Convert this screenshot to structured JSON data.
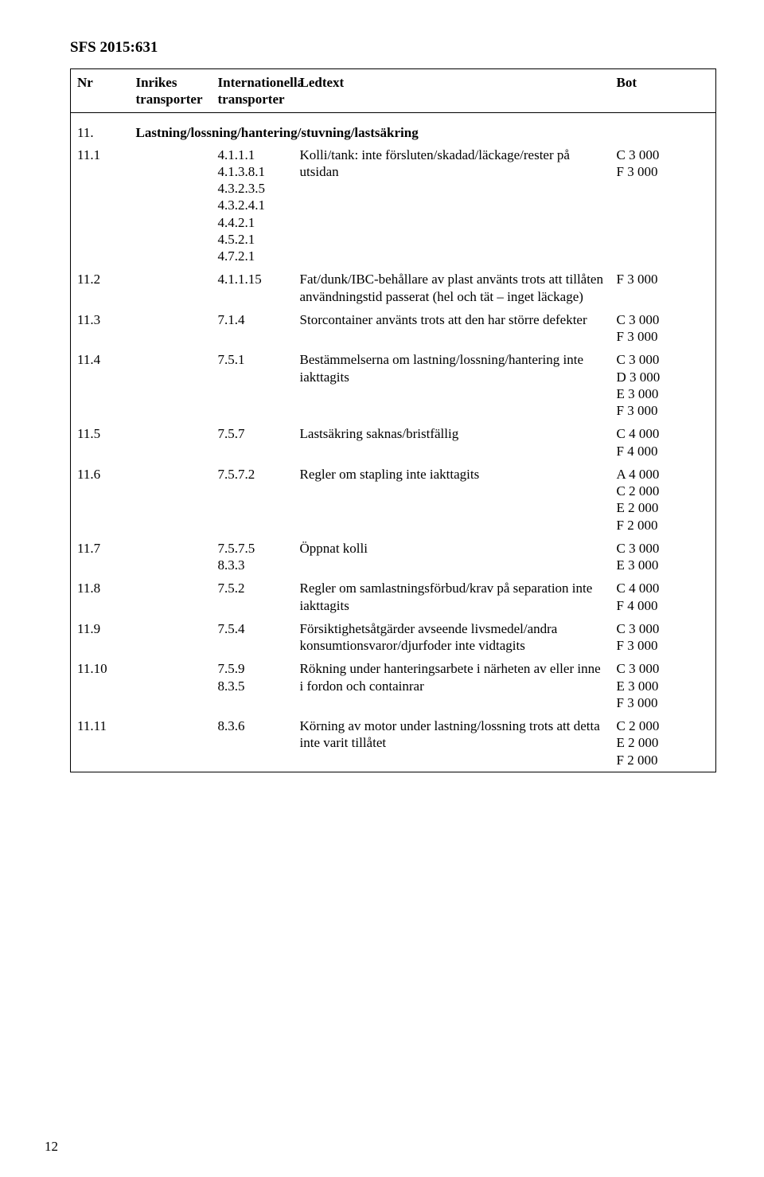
{
  "doc_header": "SFS 2015:631",
  "table": {
    "columns": [
      "Nr",
      "Inrikes transporter",
      "Internationella transporter",
      "Ledtext",
      "Bot"
    ],
    "section": {
      "nr": "11.",
      "label": "Lastning/lossning/hantering/stuvning/lastsäkring"
    },
    "rows": [
      {
        "nr": "11.1",
        "codes": [
          "4.1.1.1",
          "4.1.3.8.1",
          "4.3.2.3.5",
          "4.3.2.4.1",
          "4.4.2.1",
          "4.5.2.1",
          "4.7.2.1"
        ],
        "ledtext": "Kolli/tank: inte försluten/skadad/läckage/rester på utsidan",
        "bot": [
          "C 3 000",
          "F 3 000"
        ]
      },
      {
        "nr": "11.2",
        "codes": [
          "4.1.1.15"
        ],
        "ledtext": "Fat/dunk/IBC-behållare av plast använts trots att tillåten användningstid passerat (hel och tät – inget läckage)",
        "bot": [
          "F 3 000"
        ]
      },
      {
        "nr": "11.3",
        "codes": [
          "7.1.4"
        ],
        "ledtext": "Storcontainer använts trots att den har större defekter",
        "bot": [
          "C 3 000",
          "F 3 000"
        ]
      },
      {
        "nr": "11.4",
        "codes": [
          "7.5.1"
        ],
        "ledtext": "Bestämmelserna om lastning/lossning/hantering inte iakttagits",
        "bot": [
          "C 3 000",
          "D 3 000",
          "E 3 000",
          "F 3 000"
        ]
      },
      {
        "nr": "11.5",
        "codes": [
          "7.5.7"
        ],
        "ledtext": "Lastsäkring saknas/bristfällig",
        "bot": [
          "C 4 000",
          "F 4 000"
        ]
      },
      {
        "nr": "11.6",
        "codes": [
          "7.5.7.2"
        ],
        "ledtext": "Regler om stapling inte iakttagits",
        "bot": [
          "A 4 000",
          "C 2 000",
          "E 2 000",
          "F 2 000"
        ]
      },
      {
        "nr": "11.7",
        "codes": [
          "7.5.7.5",
          "8.3.3"
        ],
        "ledtext": "Öppnat kolli",
        "bot": [
          "C 3 000",
          "E 3 000"
        ]
      },
      {
        "nr": "11.8",
        "codes": [
          "7.5.2"
        ],
        "ledtext": "Regler om samlastningsförbud/krav på separation inte iakttagits",
        "bot": [
          "C 4 000",
          "F 4 000"
        ]
      },
      {
        "nr": "11.9",
        "codes": [
          "7.5.4"
        ],
        "ledtext": "Försiktighetsåtgärder avseende livsmedel/andra konsumtionsvaror/djurfoder inte vidtagits",
        "bot": [
          "C 3 000",
          "F 3 000"
        ]
      },
      {
        "nr": "11.10",
        "codes": [
          "7.5.9",
          "8.3.5"
        ],
        "ledtext": "Rökning under hanteringsarbete i närheten av eller inne i fordon och containrar",
        "bot": [
          "C 3 000",
          "E 3 000",
          "F 3 000"
        ]
      },
      {
        "nr": "11.11",
        "codes": [
          "8.3.6"
        ],
        "ledtext": "Körning av motor under lastning/lossning trots att detta inte varit tillåtet",
        "bot": [
          "C 2 000",
          "E 2 000",
          "F 2 000"
        ]
      }
    ]
  },
  "page_number": "12"
}
